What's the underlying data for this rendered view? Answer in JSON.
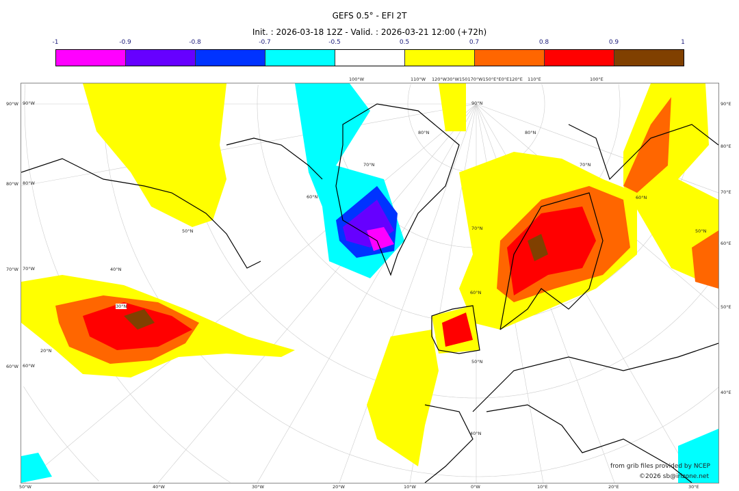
{
  "title": "GEFS 0.5° - EFI 2T",
  "subtitle": "Init. : 2026-03-18 12Z - Valid. : 2026-03-21 12:00 (+72h)",
  "colorbar": {
    "ticks": [
      "-1",
      "-0.9",
      "-0.8",
      "-0.7",
      "-0.5",
      "0.5",
      "0.7",
      "0.8",
      "0.9",
      "1"
    ],
    "colors": [
      "#ff00ff",
      "#6600ff",
      "#0033ff",
      "#00ffff",
      "#ffffff",
      "#ffff00",
      "#ff6600",
      "#ff0000",
      "#804000"
    ]
  },
  "axes": {
    "bottom": [
      "50°W",
      "40°W",
      "30°W",
      "20°W",
      "10°W",
      "0°W",
      "10°E",
      "20°E",
      "30°E"
    ],
    "left": [
      "90°W",
      "80°W",
      "70°W",
      "60°W"
    ],
    "right": [
      "90°E",
      "80°E",
      "70°E",
      "60°E",
      "50°E",
      "40°E"
    ],
    "top": [
      "100°W",
      "110°W",
      "120°W30°W150170°W150°E°E0°E120°E",
      "110°E",
      "100°E"
    ],
    "lat_labels": [
      "50°N",
      "40°N",
      "30°N",
      "20°N",
      "60°N",
      "70°N",
      "80°N",
      "90°N",
      "70°N",
      "60°N",
      "50°N",
      "40°N",
      "80°N",
      "70°N",
      "60°N",
      "50°N"
    ]
  },
  "credits": {
    "source": "from grib files provided by NCEP",
    "copyright": "©2026 sb@irizone.net"
  }
}
